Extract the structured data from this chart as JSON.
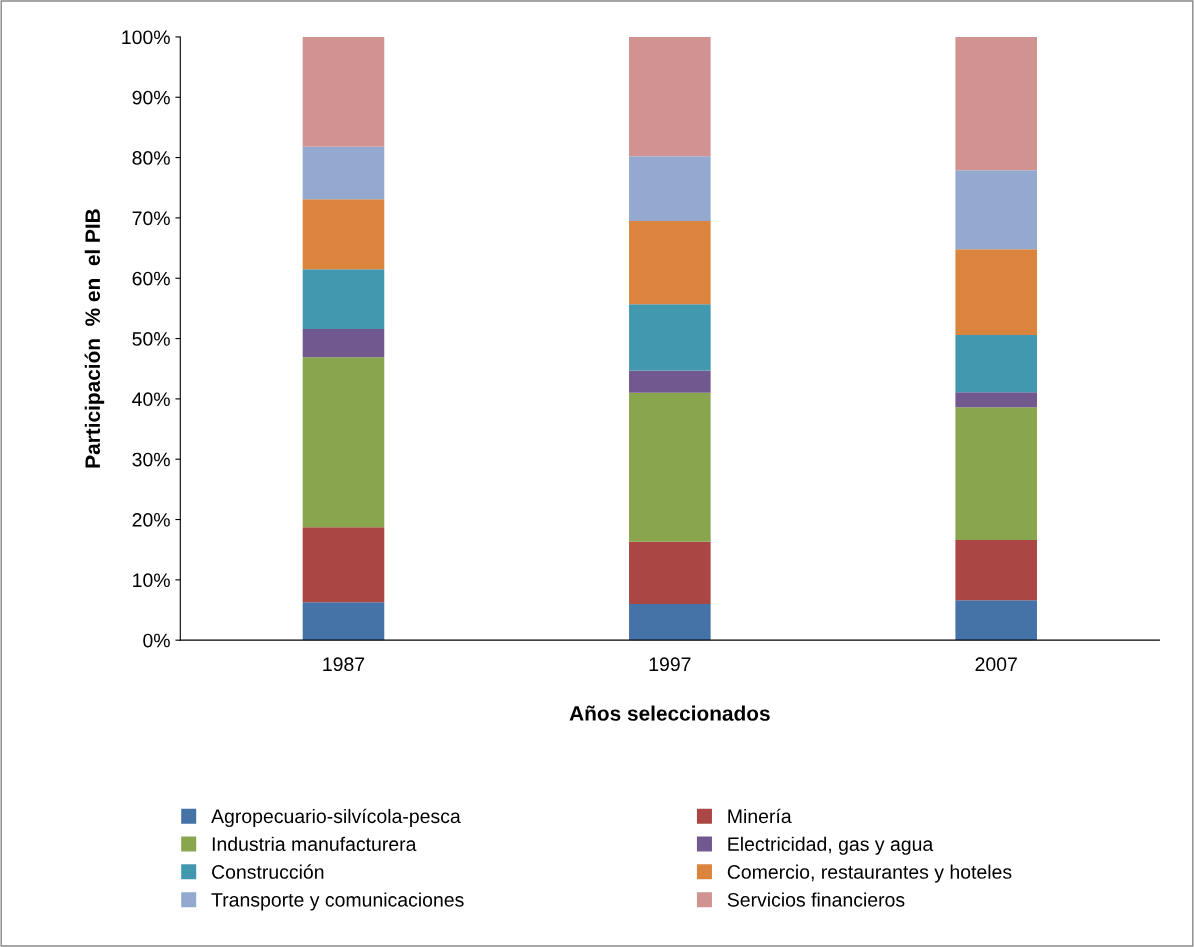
{
  "chart_data": {
    "type": "bar",
    "stacked": true,
    "xlabel": "Años seleccionados",
    "ylabel": "Participación  % en  el PIB",
    "categories": [
      "1987",
      "1997",
      "2007"
    ],
    "series": [
      {
        "name": "Agropecuario-silvícola-pesca",
        "color": "#4572a7",
        "values": [
          6.3,
          6.0,
          6.6
        ]
      },
      {
        "name": "Minería",
        "color": "#aa4643",
        "values": [
          12.4,
          10.3,
          10.0
        ]
      },
      {
        "name": "Industria manufacturera",
        "color": "#89a54e",
        "values": [
          28.2,
          24.7,
          22.0
        ]
      },
      {
        "name": "Electricidad, gas y agua",
        "color": "#71588f",
        "values": [
          4.7,
          3.7,
          2.5
        ]
      },
      {
        "name": "Construcción",
        "color": "#4198af",
        "values": [
          9.9,
          11.0,
          9.5
        ]
      },
      {
        "name": "Comercio, restaurantes y hoteles",
        "color": "#db843d",
        "values": [
          11.6,
          13.8,
          14.2
        ]
      },
      {
        "name": "Transporte y comunicaciones",
        "color": "#93a9cf",
        "values": [
          8.7,
          10.7,
          13.1
        ]
      },
      {
        "name": "Servicios financieros",
        "color": "#d19392",
        "values": [
          18.2,
          19.8,
          22.1
        ]
      }
    ],
    "ylim": [
      0,
      100
    ],
    "yticks": [
      {
        "value": 0,
        "label": "0%"
      },
      {
        "value": 10,
        "label": "10%"
      },
      {
        "value": 20,
        "label": "20%"
      },
      {
        "value": 30,
        "label": "30%"
      },
      {
        "value": 40,
        "label": "40%"
      },
      {
        "value": 50,
        "label": "50%"
      },
      {
        "value": 60,
        "label": "60%"
      },
      {
        "value": 70,
        "label": "70%"
      },
      {
        "value": 80,
        "label": "80%"
      },
      {
        "value": 90,
        "label": "90%"
      },
      {
        "value": 100,
        "label": "100%"
      }
    ],
    "grid": false,
    "legend": "bottom"
  }
}
